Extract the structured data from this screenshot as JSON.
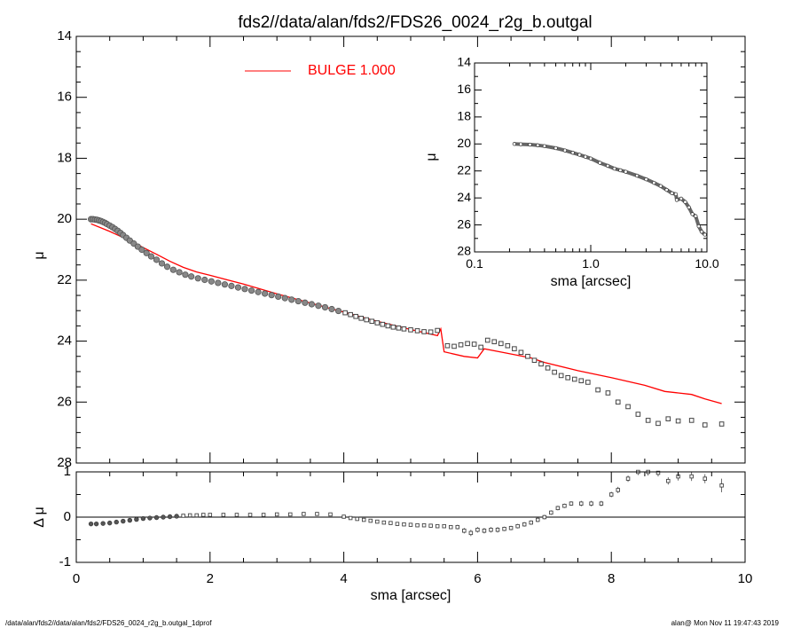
{
  "title": "fds2//data/alan/fds2/FDS26_0024_r2g_b.outgal",
  "footer": {
    "left": "/data/alan/fds2//data/alan/fds2/FDS26_0024_r2g_b.outgal_1dprof",
    "right": "alan@  Mon Nov 11 19:47:43 2019"
  },
  "legend": {
    "label": "BULGE  1.000",
    "color": "#ff0000"
  },
  "colors": {
    "data": "#555555",
    "model": "#ff0000",
    "axes": "#000000"
  },
  "chart_data": [
    {
      "id": "main_profile",
      "type": "scatter",
      "xlabel": "sma [arcsec]",
      "ylabel": "μ",
      "xlim": [
        0,
        10
      ],
      "ylim": [
        28,
        14
      ],
      "y_inverted": true,
      "xticks": [
        0,
        2,
        4,
        6,
        8,
        10
      ],
      "yticks": [
        14,
        16,
        18,
        20,
        22,
        24,
        26,
        28
      ],
      "series": [
        {
          "name": "",
          "kind": "points",
          "color": "#555555",
          "x": [
            0.22,
            0.25,
            0.28,
            0.31,
            0.34,
            0.37,
            0.4,
            0.43,
            0.46,
            0.5,
            0.54,
            0.58,
            0.62,
            0.66,
            0.7,
            0.75,
            0.8,
            0.86,
            0.92,
            0.98,
            1.05,
            1.12,
            1.2,
            1.28,
            1.36,
            1.45,
            1.54,
            1.63,
            1.72,
            1.82,
            1.92,
            2.02,
            2.12,
            2.22,
            2.32,
            2.42,
            2.52,
            2.62,
            2.72,
            2.82,
            2.92,
            3.02,
            3.12,
            3.22,
            3.32,
            3.42,
            3.52,
            3.62,
            3.72,
            3.82,
            3.92,
            4.02,
            4.1,
            4.18,
            4.26,
            4.34,
            4.42,
            4.5,
            4.58,
            4.66,
            4.74,
            4.82,
            4.9,
            5.0,
            5.1,
            5.2,
            5.3,
            5.4,
            5.55,
            5.65,
            5.75,
            5.85,
            5.95,
            6.05,
            6.15,
            6.25,
            6.35,
            6.45,
            6.55,
            6.65,
            6.75,
            6.85,
            6.95,
            7.05,
            7.15,
            7.25,
            7.35,
            7.45,
            7.55,
            7.65,
            7.8,
            7.95,
            8.1,
            8.25,
            8.4,
            8.55,
            8.7,
            8.85,
            9.0,
            9.2,
            9.4,
            9.65
          ],
          "y": [
            20.0,
            20.0,
            20.01,
            20.02,
            20.04,
            20.06,
            20.09,
            20.12,
            20.16,
            20.21,
            20.26,
            20.32,
            20.38,
            20.45,
            20.52,
            20.61,
            20.7,
            20.8,
            20.9,
            21.0,
            21.11,
            21.22,
            21.33,
            21.45,
            21.56,
            21.66,
            21.74,
            21.82,
            21.88,
            21.94,
            21.99,
            22.04,
            22.09,
            22.14,
            22.19,
            22.24,
            22.29,
            22.34,
            22.39,
            22.44,
            22.49,
            22.54,
            22.59,
            22.64,
            22.69,
            22.74,
            22.79,
            22.84,
            22.89,
            22.95,
            23.01,
            23.07,
            23.13,
            23.19,
            23.25,
            23.3,
            23.35,
            23.4,
            23.45,
            23.5,
            23.54,
            23.57,
            23.6,
            23.63,
            23.66,
            23.69,
            23.7,
            23.65,
            24.15,
            24.17,
            24.12,
            24.08,
            24.1,
            24.2,
            23.97,
            24.02,
            24.08,
            24.15,
            24.25,
            24.37,
            24.5,
            24.63,
            24.75,
            24.88,
            25.02,
            25.13,
            25.2,
            25.25,
            25.3,
            25.35,
            25.6,
            25.7,
            26.0,
            26.15,
            26.4,
            26.6,
            26.7,
            26.55,
            26.62,
            26.6,
            26.75,
            26.72
          ]
        },
        {
          "name": "BULGE  1.000",
          "kind": "line",
          "color": "#ff0000",
          "x": [
            0.22,
            0.5,
            0.8,
            1.0,
            1.2,
            1.4,
            1.6,
            1.8,
            2.0,
            2.5,
            3.0,
            3.5,
            4.0,
            4.5,
            5.0,
            5.4,
            5.45,
            5.5,
            5.8,
            6.0,
            6.1,
            6.4,
            6.8,
            7.0,
            7.5,
            8.0,
            8.5,
            8.8,
            9.0,
            9.2,
            9.4,
            9.65
          ],
          "y": [
            20.15,
            20.4,
            20.7,
            20.93,
            21.15,
            21.38,
            21.58,
            21.73,
            21.84,
            22.13,
            22.45,
            22.75,
            23.05,
            23.35,
            23.62,
            23.82,
            23.6,
            24.35,
            24.5,
            24.55,
            24.25,
            24.38,
            24.55,
            24.7,
            24.97,
            25.2,
            25.45,
            25.65,
            25.7,
            25.75,
            25.9,
            26.05
          ]
        }
      ]
    },
    {
      "id": "inset_log_profile",
      "type": "scatter",
      "xlabel": "sma [arcsec]",
      "ylabel": "μ",
      "x_scale": "log",
      "xlim": [
        0.1,
        10.0
      ],
      "ylim": [
        28,
        14
      ],
      "y_inverted": true,
      "xtick_labels": [
        "0.1",
        "1.0",
        "10.0"
      ],
      "yticks": [
        14,
        16,
        18,
        20,
        22,
        24,
        26,
        28
      ],
      "series": [
        {
          "name": "",
          "kind": "points",
          "color": "#555555",
          "x": [
            0.22,
            0.25,
            0.3,
            0.35,
            0.4,
            0.5,
            0.6,
            0.7,
            0.8,
            0.9,
            1.0,
            1.2,
            1.4,
            1.6,
            1.8,
            2.0,
            2.5,
            3.0,
            3.5,
            4.0,
            4.5,
            5.0,
            5.4,
            5.5,
            6.0,
            6.5,
            7.0,
            7.5,
            8.0,
            8.5,
            9.0,
            9.6
          ],
          "y": [
            20.0,
            20.02,
            20.05,
            20.1,
            20.16,
            20.31,
            20.48,
            20.65,
            20.8,
            20.95,
            21.08,
            21.4,
            21.62,
            21.83,
            21.95,
            22.06,
            22.35,
            22.62,
            22.88,
            23.12,
            23.4,
            23.65,
            23.72,
            24.15,
            24.05,
            24.3,
            24.7,
            25.2,
            25.35,
            26.1,
            26.5,
            26.72
          ]
        }
      ]
    },
    {
      "id": "residuals",
      "type": "scatter",
      "xlabel": "sma [arcsec]",
      "ylabel": "Δ μ",
      "xlim": [
        0,
        10
      ],
      "ylim": [
        -1,
        1
      ],
      "yticks": [
        -1,
        0,
        1
      ],
      "xticks": [
        0,
        2,
        4,
        6,
        8,
        10
      ],
      "zero_line": true,
      "series": [
        {
          "name": "",
          "kind": "points_with_errorbars",
          "color": "#555555",
          "x": [
            0.22,
            0.3,
            0.4,
            0.5,
            0.6,
            0.7,
            0.8,
            0.9,
            1.0,
            1.1,
            1.2,
            1.3,
            1.4,
            1.5,
            1.6,
            1.7,
            1.8,
            1.9,
            2.0,
            2.2,
            2.4,
            2.6,
            2.8,
            3.0,
            3.2,
            3.4,
            3.6,
            3.8,
            4.0,
            4.1,
            4.2,
            4.3,
            4.4,
            4.5,
            4.6,
            4.7,
            4.8,
            4.9,
            5.0,
            5.1,
            5.2,
            5.3,
            5.4,
            5.5,
            5.6,
            5.7,
            5.8,
            5.9,
            6.0,
            6.1,
            6.2,
            6.3,
            6.4,
            6.5,
            6.6,
            6.7,
            6.8,
            6.9,
            7.0,
            7.1,
            7.2,
            7.3,
            7.4,
            7.55,
            7.7,
            7.85,
            8.0,
            8.1,
            8.25,
            8.4,
            8.55,
            8.7,
            8.85,
            9.0,
            9.2,
            9.4,
            9.65
          ],
          "y": [
            -0.15,
            -0.15,
            -0.14,
            -0.13,
            -0.11,
            -0.09,
            -0.07,
            -0.05,
            -0.03,
            -0.02,
            -0.01,
            0.0,
            0.01,
            0.02,
            0.03,
            0.04,
            0.04,
            0.05,
            0.05,
            0.05,
            0.05,
            0.05,
            0.05,
            0.06,
            0.06,
            0.07,
            0.07,
            0.06,
            0.01,
            -0.02,
            -0.04,
            -0.06,
            -0.08,
            -0.1,
            -0.12,
            -0.13,
            -0.15,
            -0.16,
            -0.17,
            -0.18,
            -0.18,
            -0.19,
            -0.2,
            -0.2,
            -0.22,
            -0.22,
            -0.3,
            -0.35,
            -0.28,
            -0.3,
            -0.28,
            -0.28,
            -0.26,
            -0.24,
            -0.2,
            -0.16,
            -0.12,
            -0.06,
            0.0,
            0.1,
            0.2,
            0.25,
            0.3,
            0.3,
            0.3,
            0.3,
            0.5,
            0.6,
            0.85,
            1.0,
            1.0,
            0.98,
            0.8,
            0.9,
            0.9,
            0.85,
            0.7
          ],
          "err": [
            0.01,
            0.01,
            0.01,
            0.01,
            0.01,
            0.01,
            0.01,
            0.01,
            0.01,
            0.01,
            0.01,
            0.01,
            0.01,
            0.01,
            0.01,
            0.01,
            0.01,
            0.01,
            0.01,
            0.01,
            0.01,
            0.01,
            0.01,
            0.01,
            0.01,
            0.01,
            0.01,
            0.01,
            0.02,
            0.02,
            0.02,
            0.02,
            0.02,
            0.02,
            0.02,
            0.02,
            0.02,
            0.02,
            0.03,
            0.03,
            0.03,
            0.03,
            0.03,
            0.04,
            0.04,
            0.05,
            0.06,
            0.07,
            0.06,
            0.06,
            0.06,
            0.06,
            0.05,
            0.05,
            0.05,
            0.05,
            0.05,
            0.05,
            0.05,
            0.05,
            0.05,
            0.05,
            0.05,
            0.06,
            0.06,
            0.06,
            0.06,
            0.07,
            0.07,
            0.07,
            0.08,
            0.08,
            0.08,
            0.09,
            0.1,
            0.1,
            0.15
          ]
        }
      ]
    }
  ]
}
